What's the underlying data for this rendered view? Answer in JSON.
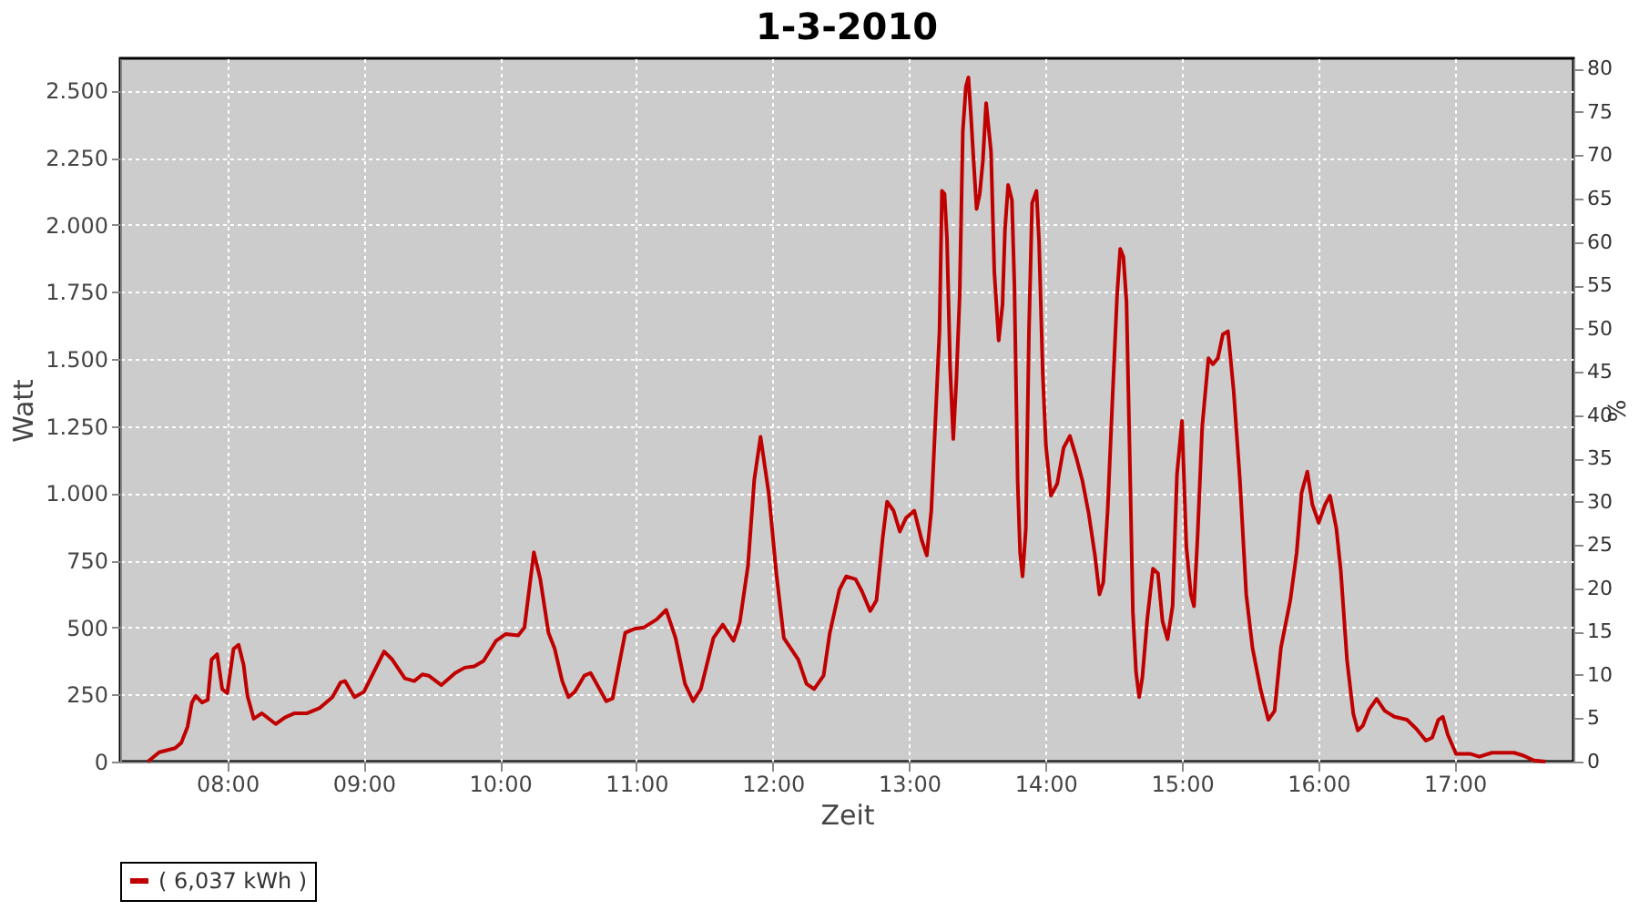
{
  "chart_data": {
    "type": "line",
    "title": "1-3-2010",
    "xlabel": "Zeit",
    "ylabel": "Watt",
    "y2label": "%",
    "xlim": [
      7.215,
      17.87
    ],
    "xticks": [
      {
        "value": 8,
        "label": "08:00"
      },
      {
        "value": 9,
        "label": "09:00"
      },
      {
        "value": 10,
        "label": "10:00"
      },
      {
        "value": 11,
        "label": "11:00"
      },
      {
        "value": 12,
        "label": "12:00"
      },
      {
        "value": 13,
        "label": "13:00"
      },
      {
        "value": 14,
        "label": "14:00"
      },
      {
        "value": 15,
        "label": "15:00"
      },
      {
        "value": 16,
        "label": "16:00"
      },
      {
        "value": 17,
        "label": "17:00"
      }
    ],
    "ylim": [
      0,
      2620
    ],
    "yticks": [
      0,
      250,
      500,
      750,
      {
        "value": 1000,
        "label": "1.000"
      },
      {
        "value": 1250,
        "label": "1.250"
      },
      {
        "value": 1500,
        "label": "1.500"
      },
      {
        "value": 1750,
        "label": "1.750"
      },
      {
        "value": 2000,
        "label": "2.000"
      },
      {
        "value": 2250,
        "label": "2.250"
      },
      {
        "value": 2500,
        "label": "2.500"
      }
    ],
    "y2lim": [
      0,
      81.2
    ],
    "y2ticks": [
      0,
      5,
      10,
      15,
      20,
      25,
      30,
      35,
      40,
      45,
      50,
      55,
      60,
      65,
      70,
      75,
      80
    ],
    "grid": true,
    "legend": "bottom",
    "marker": "none",
    "line_style": "solid",
    "series": [
      {
        "name": "( 6,037 kWh )",
        "color": "#c00000",
        "x": [
          7.418,
          7.501,
          7.617,
          7.663,
          7.709,
          7.741,
          7.769,
          7.815,
          7.857,
          7.885,
          7.926,
          7.963,
          8.0,
          8.046,
          8.083,
          8.12,
          8.148,
          8.194,
          8.254,
          8.355,
          8.425,
          8.494,
          8.586,
          8.679,
          8.771,
          8.831,
          8.863,
          8.933,
          9.002,
          9.071,
          9.15,
          9.21,
          9.302,
          9.371,
          9.431,
          9.477,
          9.57,
          9.671,
          9.741,
          9.81,
          9.879,
          9.971,
          10.041,
          10.133,
          10.179,
          10.248,
          10.295,
          10.355,
          10.401,
          10.456,
          10.502,
          10.548,
          10.618,
          10.664,
          10.779,
          10.825,
          10.918,
          10.987,
          11.056,
          11.149,
          11.218,
          11.287,
          11.356,
          11.416,
          11.472,
          11.564,
          11.633,
          11.712,
          11.758,
          11.818,
          11.864,
          11.91,
          11.97,
          12.026,
          12.081,
          12.187,
          12.247,
          12.303,
          12.372,
          12.418,
          12.488,
          12.538,
          12.607,
          12.654,
          12.714,
          12.76,
          12.806,
          12.838,
          12.885,
          12.931,
          12.977,
          13.037,
          13.092,
          13.129,
          13.162,
          13.194,
          13.222,
          13.24,
          13.259,
          13.277,
          13.3,
          13.323,
          13.346,
          13.37,
          13.393,
          13.416,
          13.434,
          13.453,
          13.471,
          13.494,
          13.517,
          13.54,
          13.564,
          13.6,
          13.624,
          13.656,
          13.684,
          13.702,
          13.725,
          13.753,
          13.771,
          13.795,
          13.813,
          13.831,
          13.855,
          13.878,
          13.901,
          13.933,
          13.952,
          13.979,
          14.002,
          14.039,
          14.085,
          14.132,
          14.178,
          14.224,
          14.27,
          14.316,
          14.362,
          14.395,
          14.423,
          14.455,
          14.487,
          14.524,
          14.547,
          14.57,
          14.593,
          14.617,
          14.64,
          14.663,
          14.686,
          14.709,
          14.746,
          14.787,
          14.824,
          14.857,
          14.894,
          14.931,
          14.963,
          15.0,
          15.032,
          15.065,
          15.088,
          15.115,
          15.148,
          15.194,
          15.226,
          15.263,
          15.3,
          15.337,
          15.379,
          15.425,
          15.471,
          15.517,
          15.577,
          15.633,
          15.679,
          15.725,
          15.794,
          15.841,
          15.877,
          15.919,
          15.956,
          16.002,
          16.049,
          16.085,
          16.132,
          16.164,
          16.21,
          16.256,
          16.289,
          16.326,
          16.372,
          16.427,
          16.487,
          16.557,
          16.649,
          16.718,
          16.788,
          16.834,
          16.88,
          16.912,
          16.949,
          17.009,
          17.111,
          17.18,
          17.273,
          17.434,
          17.504,
          17.582,
          17.665
        ],
        "values": [
          0,
          35,
          50,
          70,
          130,
          220,
          245,
          220,
          230,
          380,
          400,
          270,
          255,
          420,
          435,
          360,
          245,
          160,
          180,
          140,
          165,
          180,
          180,
          200,
          240,
          295,
          300,
          240,
          260,
          330,
          410,
          380,
          310,
          300,
          325,
          320,
          285,
          330,
          350,
          355,
          375,
          450,
          475,
          470,
          500,
          780,
          680,
          480,
          420,
          300,
          240,
          260,
          320,
          330,
          225,
          235,
          480,
          495,
          500,
          530,
          565,
          460,
          290,
          225,
          270,
          460,
          510,
          450,
          520,
          730,
          1050,
          1210,
          1000,
          700,
          460,
          380,
          290,
          270,
          320,
          480,
          640,
          690,
          679,
          634,
          561,
          601,
          835,
          968,
          935,
          857,
          908,
          935,
          824,
          768,
          935,
          1291,
          1603,
          2126,
          2115,
          1948,
          1469,
          1202,
          1425,
          1736,
          2348,
          2515,
          2549,
          2404,
          2248,
          2059,
          2115,
          2237,
          2453,
          2271,
          1825,
          1569,
          1703,
          1981,
          2148,
          2092,
          1781,
          1046,
          779,
          690,
          868,
          1603,
          2081,
          2126,
          1937,
          1447,
          1180,
          991,
          1035,
          1169,
          1213,
          1135,
          1046,
          924,
          768,
          623,
          668,
          935,
          1313,
          1736,
          1910,
          1881,
          1714,
          1135,
          557,
          334,
          240,
          312,
          534,
          719,
          701,
          523,
          456,
          579,
          1068,
          1269,
          801,
          623,
          579,
          846,
          1247,
          1503,
          1480,
          1503,
          1592,
          1603,
          1380,
          1046,
          623,
          423,
          267,
          156,
          189,
          423,
          601,
          779,
          1002,
          1080,
          957,
          890,
          957,
          991,
          868,
          712,
          378,
          178,
          116,
          134,
          194,
          234,
          189,
          167,
          156,
          122,
          78,
          89,
          156,
          167,
          100,
          29,
          29,
          18,
          33,
          33,
          22,
          4,
          0
        ]
      }
    ]
  }
}
